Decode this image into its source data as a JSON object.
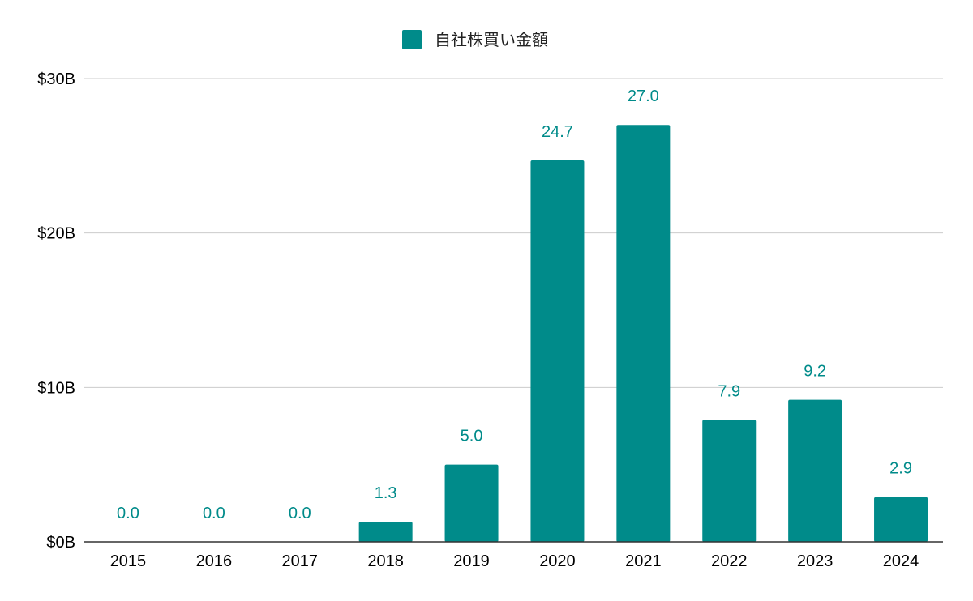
{
  "chart_data": {
    "type": "bar",
    "categories": [
      "2015",
      "2016",
      "2017",
      "2018",
      "2019",
      "2020",
      "2021",
      "2022",
      "2023",
      "2024"
    ],
    "series": [
      {
        "name": "自社株買い金額",
        "values": [
          0.0,
          0.0,
          0.0,
          1.3,
          5.0,
          24.7,
          27.0,
          7.9,
          9.2,
          2.9
        ],
        "data_labels": [
          "0.0",
          "0.0",
          "0.0",
          "1.3",
          "5.0",
          "24.7",
          "27.0",
          "7.9",
          "9.2",
          "2.9"
        ]
      }
    ],
    "title": "",
    "xlabel": "",
    "ylabel": "",
    "ylim": [
      0,
      30
    ],
    "yticks": [
      0,
      10,
      20,
      30
    ],
    "ytick_labels": [
      "$0B",
      "$10B",
      "$20B",
      "$30B"
    ],
    "grid": true,
    "legend_position": "top-center",
    "colors": {
      "bar": "#008b8a",
      "data_label": "#008b8a",
      "grid": "#cccccc",
      "axis": "#333333",
      "text": "#000000"
    }
  }
}
